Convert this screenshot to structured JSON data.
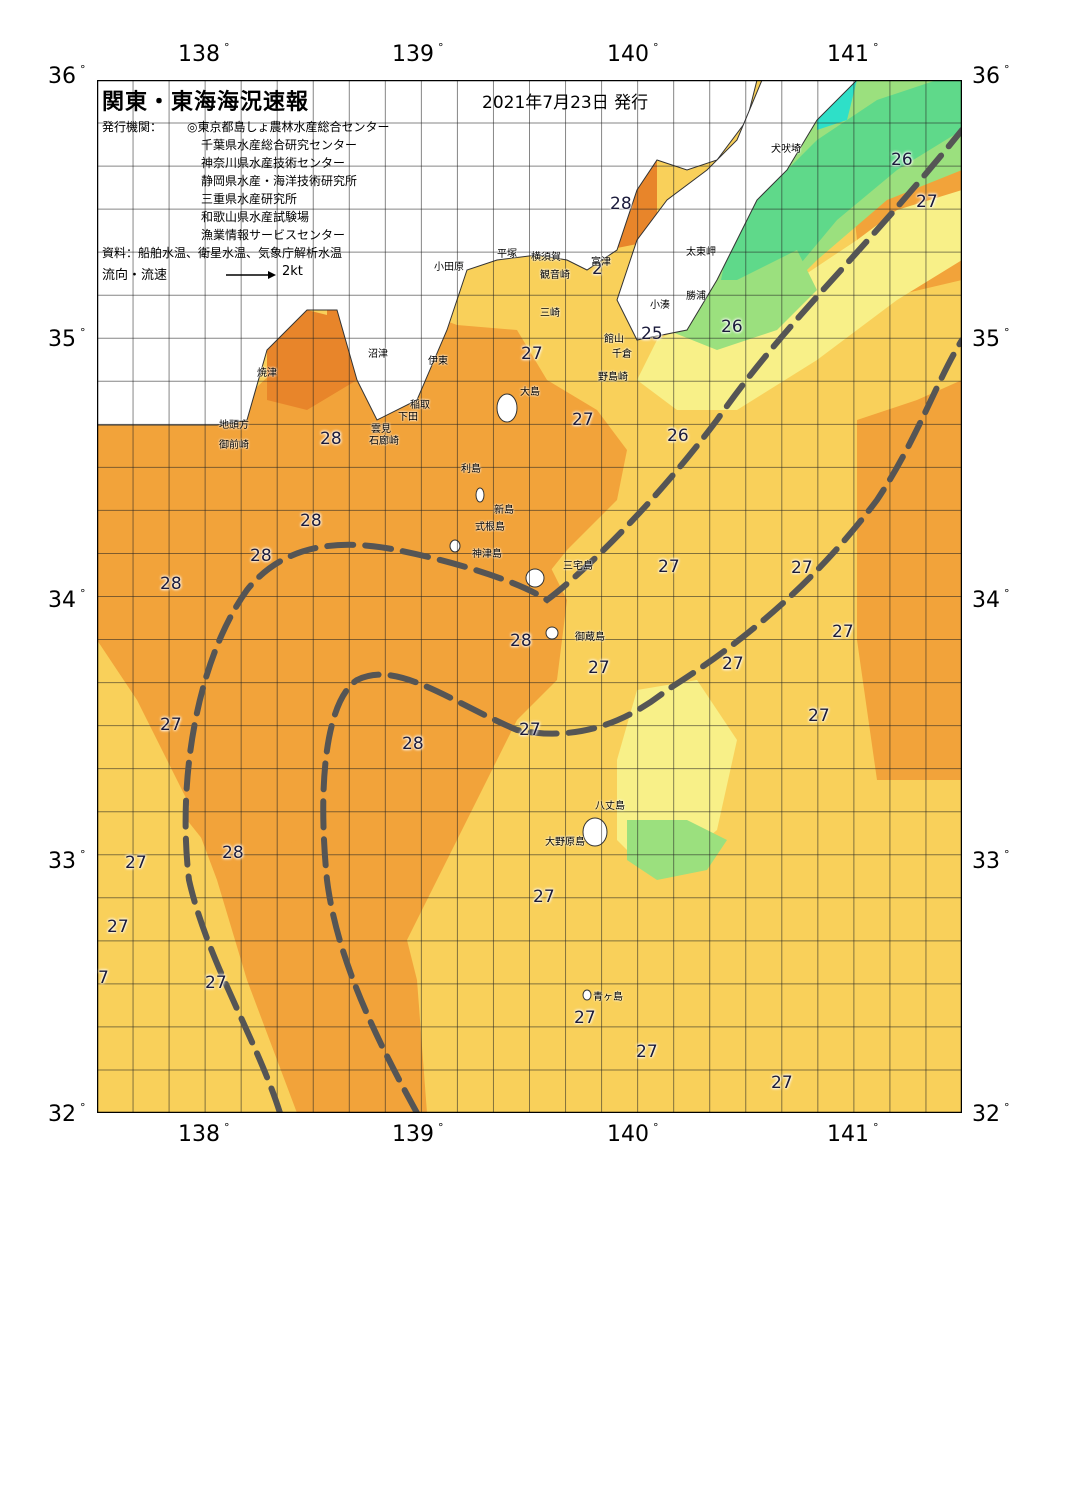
{
  "title": "関東・東海海況速報",
  "issue_date": "2021年7月23日 発行",
  "publishers_label": "発行機関：",
  "publishers": [
    "◎東京都島しょ農林水産総合センター",
    "千葉県水産総合研究センター",
    "神奈川県水産技術センター",
    "静岡県水産・海洋技術研究所",
    "三重県水産研究所",
    "和歌山県水産試験場",
    "漁業情報サービスセンター"
  ],
  "data_source": "資料：船舶水温、衛星水温、気象庁解析水温",
  "flow_legend": {
    "label": "流向・流速",
    "unit": "2kt"
  },
  "axes": {
    "longitude_labels": [
      "138",
      "139",
      "140",
      "141"
    ],
    "latitude_labels": [
      "36",
      "35",
      "34",
      "33",
      "32"
    ],
    "degree_symbol": "°"
  },
  "temperature_labels": [
    {
      "text": "26"
    },
    {
      "text": "27"
    },
    {
      "text": "28"
    },
    {
      "text": "2"
    },
    {
      "text": "25"
    },
    {
      "text": "27"
    },
    {
      "text": "26"
    },
    {
      "text": "27"
    },
    {
      "text": "26"
    },
    {
      "text": "28"
    },
    {
      "text": "28"
    },
    {
      "text": "28"
    },
    {
      "text": "28"
    },
    {
      "text": "27"
    },
    {
      "text": "27"
    },
    {
      "text": "27"
    },
    {
      "text": "28"
    },
    {
      "text": "27"
    },
    {
      "text": "27"
    },
    {
      "text": "27"
    },
    {
      "text": "27"
    },
    {
      "text": "28"
    },
    {
      "text": "27"
    },
    {
      "text": "28"
    },
    {
      "text": "27"
    },
    {
      "text": "27"
    },
    {
      "text": "27"
    },
    {
      "text": "7"
    },
    {
      "text": "27"
    },
    {
      "text": "27"
    },
    {
      "text": "27"
    },
    {
      "text": "27"
    }
  ],
  "place_names": [
    "犬吠埼",
    "太東岬",
    "勝浦",
    "小湊",
    "富津",
    "観音崎",
    "横須賀",
    "平塚",
    "小田原",
    "三崎",
    "館山",
    "千倉",
    "野島崎",
    "大島",
    "沼津",
    "伊東",
    "稲取",
    "下田",
    "焼津",
    "地頭方",
    "御前崎",
    "石廊崎",
    "雲見",
    "利島",
    "新島",
    "式根島",
    "神津島",
    "三宅島",
    "御蔵島",
    "八丈島",
    "青ヶ島",
    "大野原島"
  ],
  "colors": {
    "warm_28": "#f2a33a",
    "orange_deep": "#e8852a",
    "yellow_27": "#f9d05a",
    "pale_yellow": "#f8f088",
    "light_green_25": "#9be07e",
    "green_24": "#5fd98a",
    "cyan_cold": "#2ee0c8",
    "land": "#ffffff",
    "current_axis": "#555555"
  }
}
